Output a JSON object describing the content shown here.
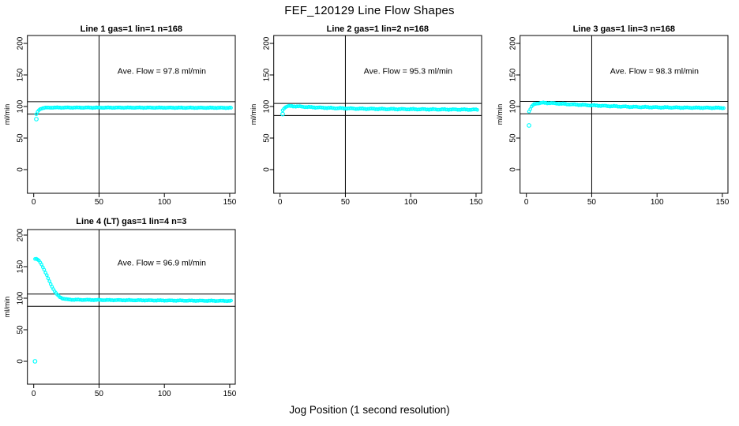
{
  "page": {
    "title": "FEF_120129  Line Flow Shapes",
    "xlabel": "Jog Position (1 second resolution)"
  },
  "colors": {
    "marker": "#00FFFF",
    "axis": "#000000",
    "text": "#000000",
    "background": "#FFFFFF"
  },
  "chart_data": [
    {
      "type": "scatter",
      "title": "Line 1 gas=1 lin=1 n=168",
      "annotation": "Ave. Flow =  97.8  ml/min",
      "ave_flow": 97.8,
      "n": 168,
      "ylabel": "ml/min",
      "xlim": [
        0,
        150
      ],
      "ylim": [
        0,
        200
      ],
      "xticks": [
        0,
        50,
        100,
        150
      ],
      "yticks": [
        0,
        50,
        100,
        150,
        200
      ],
      "vline_x": 50,
      "hlines": [
        107.6,
        88.0
      ],
      "outliers": [
        [
          2,
          80
        ]
      ],
      "curve": [
        [
          2,
          87.5
        ],
        [
          3,
          91.5
        ],
        [
          4,
          94.5
        ],
        [
          5,
          96
        ],
        [
          6,
          97
        ],
        [
          8,
          97.8
        ],
        [
          10,
          98.1
        ],
        [
          15,
          98.3
        ],
        [
          25,
          98.3
        ],
        [
          50,
          98.2
        ],
        [
          75,
          98.2
        ],
        [
          100,
          98.1
        ],
        [
          125,
          98
        ],
        [
          151,
          97.9
        ]
      ],
      "jitter": 0.55
    },
    {
      "type": "scatter",
      "title": "Line 2 gas=1 lin=2 n=168",
      "annotation": "Ave. Flow =  95.3  ml/min",
      "ave_flow": 95.3,
      "n": 168,
      "ylabel": "ml/min",
      "xlim": [
        0,
        150
      ],
      "ylim": [
        0,
        200
      ],
      "xticks": [
        0,
        50,
        100,
        150
      ],
      "yticks": [
        0,
        50,
        100,
        150,
        200
      ],
      "vline_x": 50,
      "hlines": [
        104.8,
        85.8
      ],
      "outliers": [
        [
          2,
          88
        ]
      ],
      "curve": [
        [
          2,
          94
        ],
        [
          3,
          97
        ],
        [
          4,
          99
        ],
        [
          6,
          100.5
        ],
        [
          10,
          100.5
        ],
        [
          15,
          100
        ],
        [
          20,
          99.3
        ],
        [
          30,
          98.3
        ],
        [
          40,
          97.5
        ],
        [
          60,
          96.5
        ],
        [
          80,
          96
        ],
        [
          100,
          95.7
        ],
        [
          120,
          95.4
        ],
        [
          151,
          95
        ]
      ],
      "jitter": 0.8
    },
    {
      "type": "scatter",
      "title": "Line 3 gas=1 lin=3 n=168",
      "annotation": "Ave. Flow =  98.3  ml/min",
      "ave_flow": 98.3,
      "n": 168,
      "ylabel": "ml/min",
      "xlim": [
        0,
        150
      ],
      "ylim": [
        0,
        200
      ],
      "xticks": [
        0,
        50,
        100,
        150
      ],
      "yticks": [
        0,
        50,
        100,
        150,
        200
      ],
      "vline_x": 50,
      "hlines": [
        108.1,
        88.5
      ],
      "outliers": [
        [
          2,
          70
        ]
      ],
      "curve": [
        [
          2,
          92
        ],
        [
          3,
          96
        ],
        [
          4,
          99.5
        ],
        [
          5,
          102
        ],
        [
          6,
          103.5
        ],
        [
          8,
          105
        ],
        [
          12,
          105.8
        ],
        [
          18,
          105.5
        ],
        [
          25,
          104.5
        ],
        [
          35,
          103.2
        ],
        [
          50,
          101.8
        ],
        [
          65,
          100.5
        ],
        [
          80,
          99.5
        ],
        [
          100,
          98.7
        ],
        [
          120,
          98.2
        ],
        [
          151,
          97.8
        ]
      ],
      "jitter": 0.8
    },
    {
      "type": "scatter",
      "title": "Line 4 (LT) gas=1 lin=4 n=3",
      "annotation": "Ave. Flow =  96.9  ml/min",
      "ave_flow": 96.9,
      "n": 3,
      "ylabel": "ml/min",
      "xlim": [
        0,
        150
      ],
      "ylim": [
        0,
        200
      ],
      "xticks": [
        0,
        50,
        100,
        150
      ],
      "yticks": [
        0,
        50,
        100,
        150,
        200
      ],
      "vline_x": 50,
      "hlines": [
        106.6,
        87.2
      ],
      "outliers": [
        [
          1,
          0
        ]
      ],
      "curve": [
        [
          1,
          162
        ],
        [
          2,
          162
        ],
        [
          3,
          161
        ],
        [
          4,
          159.5
        ],
        [
          5,
          157
        ],
        [
          6,
          153.5
        ],
        [
          7,
          149.5
        ],
        [
          8,
          145
        ],
        [
          9,
          140.5
        ],
        [
          10,
          136
        ],
        [
          11,
          131.5
        ],
        [
          12,
          127
        ],
        [
          13,
          122.5
        ],
        [
          14,
          118.5
        ],
        [
          15,
          114.5
        ],
        [
          16,
          111
        ],
        [
          17,
          108
        ],
        [
          18,
          105.5
        ],
        [
          19,
          103.5
        ],
        [
          20,
          101.8
        ],
        [
          22,
          99.8
        ],
        [
          24,
          98.7
        ],
        [
          26,
          98
        ],
        [
          30,
          97.6
        ],
        [
          40,
          97.3
        ],
        [
          60,
          97
        ],
        [
          80,
          96.7
        ],
        [
          100,
          96.4
        ],
        [
          120,
          96.1
        ],
        [
          151,
          95.7
        ]
      ],
      "jitter": 0.55
    }
  ]
}
